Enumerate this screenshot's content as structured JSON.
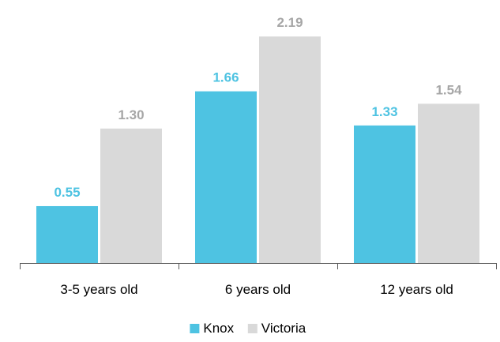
{
  "chart_data": {
    "type": "bar",
    "categories": [
      "3-5 years old",
      "6 years old",
      "12 years old"
    ],
    "series": [
      {
        "name": "Knox",
        "values": [
          0.55,
          1.66,
          1.33
        ],
        "color": "#4ec3e2",
        "labels": [
          "0.55",
          "1.66",
          "1.33"
        ]
      },
      {
        "name": "Victoria",
        "values": [
          1.3,
          2.19,
          1.54
        ],
        "color": "#d9d9d9",
        "labels": [
          "1.30",
          "2.19",
          "1.54"
        ]
      }
    ],
    "label_colors": {
      "Knox": "#4ec3e2",
      "Victoria": "#a6a6a6"
    },
    "axis_color": "#595959",
    "ylim": [
      0,
      2.52
    ],
    "grid": false,
    "legend_position": "bottom",
    "title": "",
    "xlabel": "",
    "ylabel": ""
  }
}
